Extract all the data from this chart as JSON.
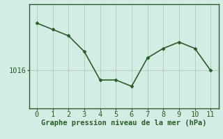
{
  "x": [
    0,
    1,
    2,
    3,
    4,
    5,
    6,
    7,
    8,
    9,
    10,
    11
  ],
  "y": [
    1023.5,
    1022.5,
    1021.5,
    1019.0,
    1014.5,
    1014.5,
    1013.5,
    1018.0,
    1019.5,
    1020.5,
    1019.5,
    1016.0
  ],
  "bg_color": "#d4ede4",
  "line_color": "#2a5c2a",
  "marker_color": "#2a5c2a",
  "grid_color": "#b0c8b8",
  "xlabel": "Graphe pression niveau de la mer (hPa)",
  "ylabel_tick": "1016",
  "ylabel_val": 1016,
  "xlim": [
    -0.5,
    11.5
  ],
  "ylim": [
    1010.0,
    1026.5
  ],
  "xticks": [
    0,
    1,
    2,
    3,
    4,
    5,
    6,
    7,
    8,
    9,
    10,
    11
  ],
  "ytick_positions": [
    1016
  ],
  "xlabel_color": "#2a5c2a",
  "tick_color": "#2a5c2a",
  "border_color": "#2a5c2a",
  "fig_bg": "#d4ede4",
  "tick_fontsize": 7.5,
  "xlabel_fontsize": 7.5
}
